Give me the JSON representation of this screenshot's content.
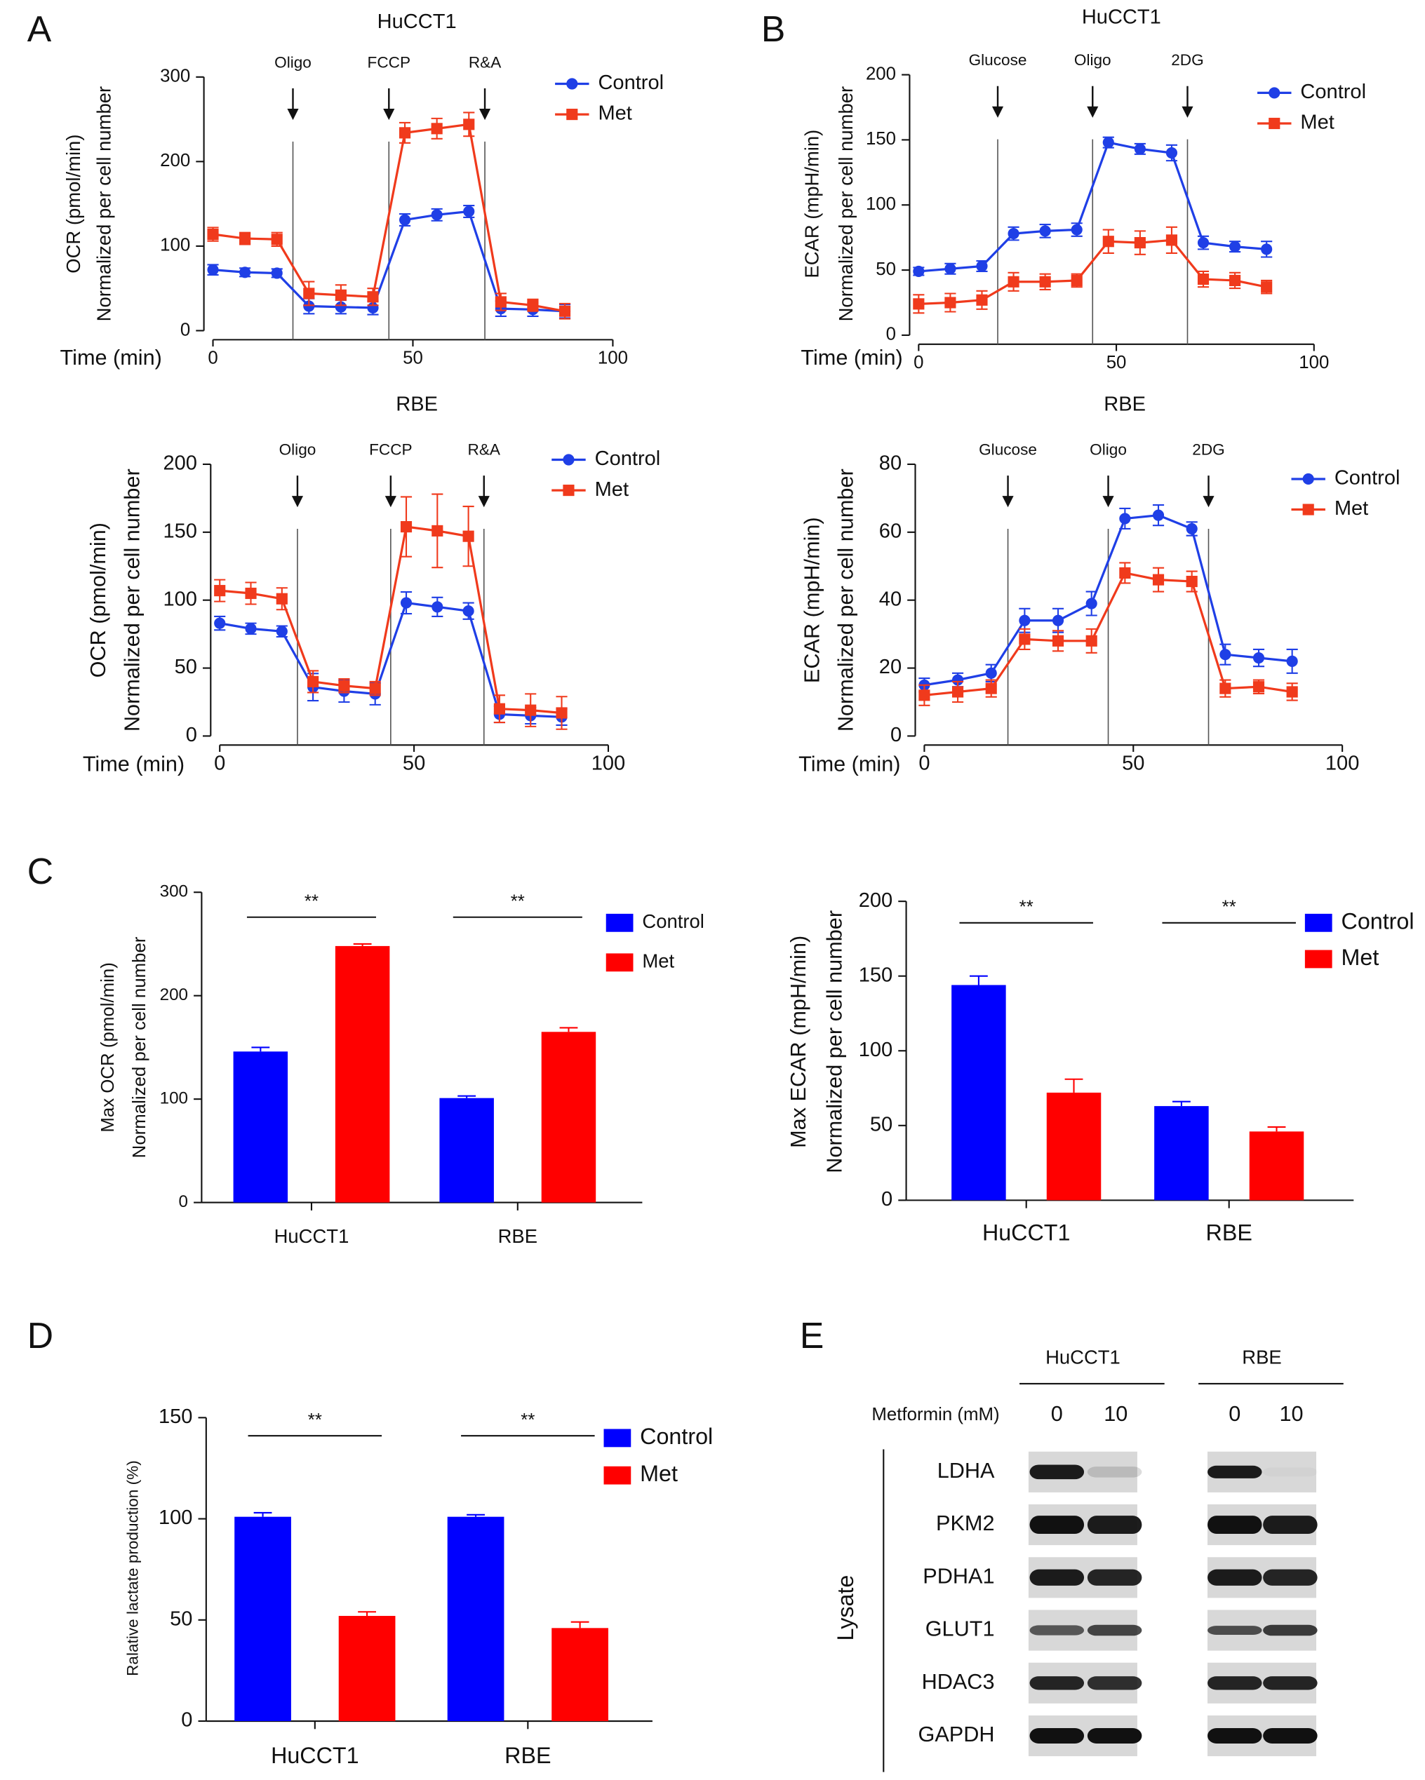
{
  "panel_labels": [
    "A",
    "B",
    "C",
    "D",
    "E"
  ],
  "chart_data": [
    {
      "type": "line",
      "title": "HuCCT1",
      "xlabel": "Time (min)",
      "ylabel": [
        "OCR (pmol/min)",
        "Normalized per cell number"
      ],
      "x": [
        0,
        8,
        16,
        24,
        32,
        40,
        48,
        56,
        64,
        72,
        80,
        88
      ],
      "xlim": [
        0,
        100
      ],
      "xticks": [
        0,
        50,
        100
      ],
      "ylim": [
        0,
        300
      ],
      "yticks": [
        0,
        100,
        200,
        300
      ],
      "annotations": [
        {
          "text": "Oligo",
          "x": 20
        },
        {
          "text": "FCCP",
          "x": 44
        },
        {
          "text": "R&A",
          "x": 68
        }
      ],
      "series": [
        {
          "name": "Control",
          "color": "#1f3fe6",
          "marker": "circle",
          "values": [
            72,
            69,
            68,
            29,
            28,
            27,
            131,
            137,
            141,
            26,
            25,
            23
          ],
          "errors": [
            6,
            5,
            5,
            9,
            8,
            8,
            7,
            7,
            7,
            9,
            8,
            8
          ]
        },
        {
          "name": "Met",
          "color": "#f03a1c",
          "marker": "square",
          "values": [
            114,
            109,
            108,
            44,
            42,
            40,
            234,
            239,
            244,
            34,
            30,
            23
          ],
          "errors": [
            8,
            7,
            8,
            14,
            12,
            10,
            12,
            12,
            14,
            10,
            7,
            9
          ]
        }
      ]
    },
    {
      "type": "line",
      "title": "RBE",
      "xlabel": "Time (min)",
      "ylabel": [
        "OCR (pmol/min)",
        "Normalized per cell number"
      ],
      "x": [
        0,
        8,
        16,
        24,
        32,
        40,
        48,
        56,
        64,
        72,
        80,
        88
      ],
      "xlim": [
        0,
        100
      ],
      "xticks": [
        0,
        50,
        100
      ],
      "ylim": [
        0,
        200
      ],
      "yticks": [
        0,
        50,
        100,
        150,
        200
      ],
      "annotations": [
        {
          "text": "Oligo",
          "x": 20
        },
        {
          "text": "FCCP",
          "x": 44
        },
        {
          "text": "R&A",
          "x": 68
        }
      ],
      "series": [
        {
          "name": "Control",
          "color": "#1f3fe6",
          "marker": "circle",
          "values": [
            83,
            79,
            77,
            36,
            33,
            31,
            98,
            95,
            92,
            16,
            15,
            14
          ],
          "errors": [
            5,
            4,
            4,
            10,
            8,
            8,
            8,
            7,
            6,
            6,
            6,
            6
          ]
        },
        {
          "name": "Met",
          "color": "#f03a1c",
          "marker": "square",
          "values": [
            107,
            105,
            101,
            40,
            37,
            35,
            154,
            151,
            147,
            20,
            19,
            17
          ],
          "errors": [
            8,
            8,
            8,
            8,
            5,
            5,
            22,
            27,
            22,
            10,
            12,
            12
          ]
        }
      ]
    },
    {
      "type": "line",
      "title": "HuCCT1",
      "xlabel": "Time (min)",
      "ylabel": [
        "ECAR (mpH/min)",
        "Normalized per cell number"
      ],
      "x": [
        0,
        8,
        16,
        24,
        32,
        40,
        48,
        56,
        64,
        72,
        80,
        88
      ],
      "xlim": [
        0,
        100
      ],
      "xticks": [
        0,
        50,
        100
      ],
      "ylim": [
        0,
        200
      ],
      "yticks": [
        0,
        50,
        100,
        150,
        200
      ],
      "annotations": [
        {
          "text": "Glucose",
          "x": 20
        },
        {
          "text": "Oligo",
          "x": 44
        },
        {
          "text": "2DG",
          "x": 68
        }
      ],
      "series": [
        {
          "name": "Control",
          "color": "#1f3fe6",
          "marker": "circle",
          "values": [
            49,
            51,
            53,
            78,
            80,
            81,
            148,
            143,
            140,
            71,
            68,
            66
          ],
          "errors": [
            3,
            4,
            4,
            5,
            5,
            5,
            4,
            4,
            6,
            5,
            4,
            6
          ]
        },
        {
          "name": "Met",
          "color": "#f03a1c",
          "marker": "square",
          "values": [
            24,
            25,
            27,
            41,
            41,
            42,
            72,
            71,
            73,
            43,
            42,
            37
          ],
          "errors": [
            7,
            7,
            7,
            7,
            6,
            5,
            9,
            9,
            10,
            6,
            6,
            5
          ]
        }
      ]
    },
    {
      "type": "line",
      "title": "RBE",
      "xlabel": "Time (min)",
      "ylabel": [
        "ECAR (mpH/min)",
        "Normalized per cell number"
      ],
      "x": [
        0,
        8,
        16,
        24,
        32,
        40,
        48,
        56,
        64,
        72,
        80,
        88
      ],
      "xlim": [
        0,
        100
      ],
      "xticks": [
        0,
        50,
        100
      ],
      "ylim": [
        0,
        80
      ],
      "yticks": [
        0,
        20,
        40,
        60,
        80
      ],
      "annotations": [
        {
          "text": "Glucose",
          "x": 20
        },
        {
          "text": "Oligo",
          "x": 44
        },
        {
          "text": "2DG",
          "x": 68
        }
      ],
      "series": [
        {
          "name": "Control",
          "color": "#1f3fe6",
          "marker": "circle",
          "values": [
            15,
            16.5,
            18.5,
            34,
            34,
            39,
            64,
            65,
            61,
            24,
            23,
            22
          ],
          "errors": [
            2,
            2,
            2.5,
            3.5,
            3.5,
            3.5,
            3,
            3,
            2,
            3,
            2.5,
            3.5
          ]
        },
        {
          "name": "Met",
          "color": "#f03a1c",
          "marker": "square",
          "values": [
            12,
            13,
            14,
            28.5,
            28,
            28,
            48,
            46,
            45.5,
            14,
            14.5,
            13
          ],
          "errors": [
            3,
            3,
            2.5,
            3,
            3,
            3.5,
            3,
            3.5,
            3,
            2.5,
            2,
            2.5
          ]
        }
      ]
    },
    {
      "type": "bar",
      "ylabel": [
        "Max OCR (pmol/min)",
        "Normalized per cell number"
      ],
      "categories": [
        "HuCCT1",
        "RBE"
      ],
      "ylim": [
        0,
        300
      ],
      "yticks": [
        0,
        100,
        200,
        300
      ],
      "significance": [
        "**",
        "**"
      ],
      "series": [
        {
          "name": "Control",
          "color": "#0000ff",
          "values": [
            146,
            101
          ],
          "errors": [
            4,
            2
          ]
        },
        {
          "name": "Met",
          "color": "#ff0000",
          "values": [
            248,
            165
          ],
          "errors": [
            2,
            4
          ]
        }
      ]
    },
    {
      "type": "bar",
      "ylabel": [
        "Max ECAR (mpH/min)",
        "Normalized per cell number"
      ],
      "categories": [
        "HuCCT1",
        "RBE"
      ],
      "ylim": [
        0,
        200
      ],
      "yticks": [
        0,
        50,
        100,
        150,
        200
      ],
      "significance": [
        "**",
        "**"
      ],
      "series": [
        {
          "name": "Control",
          "color": "#0000ff",
          "values": [
            144,
            63
          ],
          "errors": [
            6,
            3
          ]
        },
        {
          "name": "Met",
          "color": "#ff0000",
          "values": [
            72,
            46
          ],
          "errors": [
            9,
            3
          ]
        }
      ]
    },
    {
      "type": "bar",
      "ylabel": [
        "Ralative lactate production (%)"
      ],
      "categories": [
        "HuCCT1",
        "RBE"
      ],
      "ylim": [
        0,
        150
      ],
      "yticks": [
        0,
        50,
        100,
        150
      ],
      "significance": [
        "**",
        "**"
      ],
      "series": [
        {
          "name": "Control",
          "color": "#0000ff",
          "values": [
            101,
            101
          ],
          "errors": [
            2,
            1
          ]
        },
        {
          "name": "Met",
          "color": "#ff0000",
          "values": [
            52,
            46
          ],
          "errors": [
            2,
            3
          ]
        }
      ]
    }
  ],
  "blot": {
    "groups": [
      "HuCCT1",
      "RBE"
    ],
    "treatment_label": "Metformin (mM)",
    "doses": [
      "0",
      "10",
      "0",
      "10"
    ],
    "side_label": "Lysate",
    "proteins": [
      "LDHA",
      "PKM2",
      "PDHA1",
      "GLUT1",
      "HDAC3",
      "GAPDH"
    ]
  }
}
